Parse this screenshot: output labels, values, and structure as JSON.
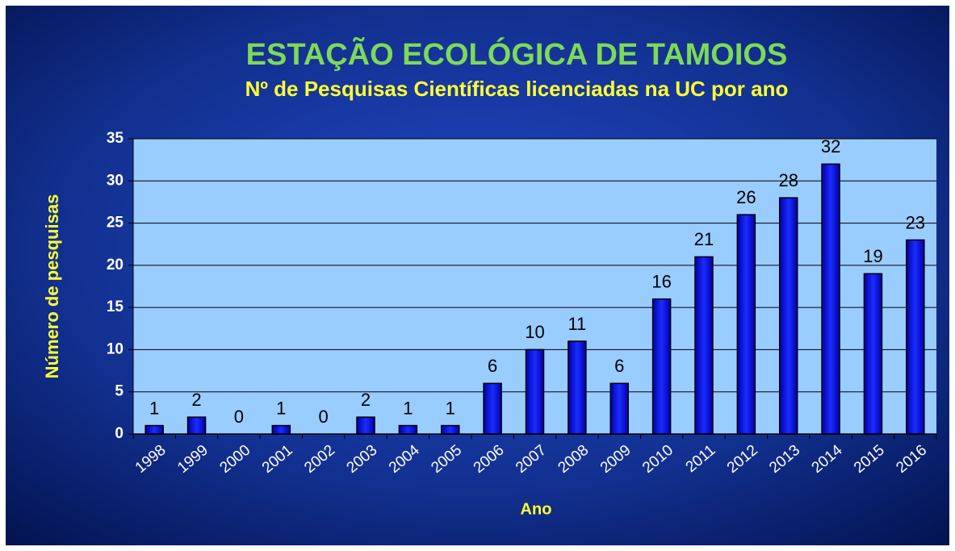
{
  "chart_data": {
    "type": "bar",
    "title": "ESTAÇÃO ECOLÓGICA DE TAMOIOS",
    "subtitle": "Nº de Pesquisas Científicas licenciadas na UC por ano",
    "x_label": "Ano",
    "y_label": "Número de pesquisas",
    "categories": [
      "1998",
      "1999",
      "2000",
      "2001",
      "2002",
      "2003",
      "2004",
      "2005",
      "2006",
      "2007",
      "2008",
      "2009",
      "2010",
      "2011",
      "2012",
      "2013",
      "2014",
      "2015",
      "2016"
    ],
    "values": [
      1,
      2,
      0,
      1,
      0,
      2,
      1,
      1,
      6,
      10,
      11,
      6,
      16,
      21,
      26,
      28,
      32,
      19,
      23
    ],
    "color": "#0a14e6",
    "ylim": [
      0,
      35
    ],
    "yticks": [
      0,
      5,
      10,
      15,
      20,
      25,
      30,
      35
    ],
    "grid": true
  }
}
